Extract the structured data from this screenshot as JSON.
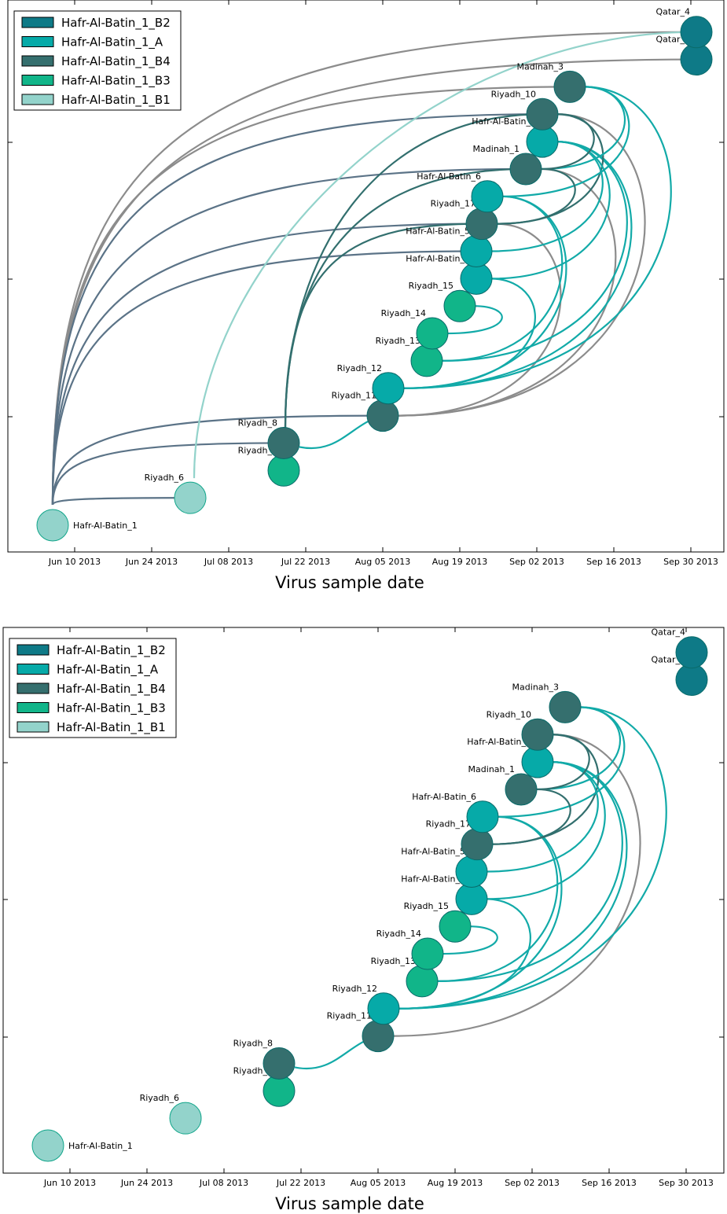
{
  "chart_data": [
    {
      "type": "scatter",
      "panel": "top",
      "xlabel": "Virus sample date",
      "ylabel": "",
      "x_ticks": [
        "Jun 10 2013",
        "Jun 24 2013",
        "Jul 08 2013",
        "Jul 22 2013",
        "Aug 05 2013",
        "Aug 19 2013",
        "Sep 02 2013",
        "Sep 16 2013",
        "Sep 30 2013"
      ],
      "legend": {
        "position": "top-left",
        "entries": [
          {
            "name": "Hafr-Al-Batin_1_B2",
            "color": "#0e7a87"
          },
          {
            "name": "Hafr-Al-Batin_1_A",
            "color": "#06aaa8"
          },
          {
            "name": "Hafr-Al-Batin_1_B4",
            "color": "#356f6e"
          },
          {
            "name": "Hafr-Al-Batin_1_B3",
            "color": "#11b589"
          },
          {
            "name": "Hafr-Al-Batin_1_B1",
            "color": "#93d3cb"
          }
        ]
      },
      "nodes": [
        {
          "label": "Hafr-Al-Batin_1",
          "clade": "Hafr-Al-Batin_1_B1",
          "x": "2013-06-06",
          "rank": 0
        },
        {
          "label": "Riyadh_6",
          "clade": "Hafr-Al-Batin_1_B1",
          "x": "2013-07-01",
          "rank": 1
        },
        {
          "label": "Riyadh_7",
          "clade": "Hafr-Al-Batin_1_B3",
          "x": "2013-07-18",
          "rank": 2
        },
        {
          "label": "Riyadh_8",
          "clade": "Hafr-Al-Batin_1_B4",
          "x": "2013-07-18",
          "rank": 3
        },
        {
          "label": "Riyadh_11",
          "clade": "Hafr-Al-Batin_1_B4",
          "x": "2013-08-05",
          "rank": 4
        },
        {
          "label": "Riyadh_12",
          "clade": "Hafr-Al-Batin_1_A",
          "x": "2013-08-06",
          "rank": 5
        },
        {
          "label": "Riyadh_13",
          "clade": "Hafr-Al-Batin_1_B3",
          "x": "2013-08-13",
          "rank": 6
        },
        {
          "label": "Riyadh_14",
          "clade": "Hafr-Al-Batin_1_B3",
          "x": "2013-08-14",
          "rank": 7
        },
        {
          "label": "Riyadh_15",
          "clade": "Hafr-Al-Batin_1_B3",
          "x": "2013-08-19",
          "rank": 8
        },
        {
          "label": "Hafr-Al-Batin_4",
          "clade": "Hafr-Al-Batin_1_A",
          "x": "2013-08-22",
          "rank": 9
        },
        {
          "label": "Hafr-Al-Batin_5",
          "clade": "Hafr-Al-Batin_1_A",
          "x": "2013-08-22",
          "rank": 10
        },
        {
          "label": "Riyadh_17",
          "clade": "Hafr-Al-Batin_1_B4",
          "x": "2013-08-23",
          "rank": 11
        },
        {
          "label": "Hafr-Al-Batin_6",
          "clade": "Hafr-Al-Batin_1_A",
          "x": "2013-08-24",
          "rank": 12
        },
        {
          "label": "Madinah_1",
          "clade": "Hafr-Al-Batin_1_B4",
          "x": "2013-08-31",
          "rank": 13
        },
        {
          "label": "Hafr-Al-Batin_2",
          "clade": "Hafr-Al-Batin_1_A",
          "x": "2013-09-03",
          "rank": 14
        },
        {
          "label": "Riyadh_10",
          "clade": "Hafr-Al-Batin_1_B4",
          "x": "2013-09-03",
          "rank": 15
        },
        {
          "label": "Madinah_3",
          "clade": "Hafr-Al-Batin_1_B4",
          "x": "2013-09-08",
          "rank": 16
        },
        {
          "label": "Qatar_3",
          "clade": "Hafr-Al-Batin_1_B2",
          "x": "2013-10-01",
          "rank": 17
        },
        {
          "label": "Qatar_4",
          "clade": "Hafr-Al-Batin_1_B2",
          "x": "2013-10-01",
          "rank": 18
        }
      ]
    },
    {
      "type": "scatter",
      "panel": "bottom",
      "xlabel": "Virus sample date",
      "ylabel": "",
      "x_ticks": [
        "Jun 10 2013",
        "Jun 24 2013",
        "Jul 08 2013",
        "Jul 22 2013",
        "Aug 05 2013",
        "Aug 19 2013",
        "Sep 02 2013",
        "Sep 16 2013",
        "Sep 30 2013"
      ],
      "legend": {
        "position": "top-left",
        "entries": [
          {
            "name": "Hafr-Al-Batin_1_B2",
            "color": "#0e7a87"
          },
          {
            "name": "Hafr-Al-Batin_1_A",
            "color": "#06aaa8"
          },
          {
            "name": "Hafr-Al-Batin_1_B4",
            "color": "#356f6e"
          },
          {
            "name": "Hafr-Al-Batin_1_B3",
            "color": "#11b589"
          },
          {
            "name": "Hafr-Al-Batin_1_B1",
            "color": "#93d3cb"
          }
        ]
      },
      "nodes": [
        {
          "label": "Hafr-Al-Batin_1",
          "clade": "Hafr-Al-Batin_1_B1",
          "x": "2013-06-06",
          "rank": 0
        },
        {
          "label": "Riyadh_6",
          "clade": "Hafr-Al-Batin_1_B1",
          "x": "2013-07-01",
          "rank": 1
        },
        {
          "label": "Riyadh_7",
          "clade": "Hafr-Al-Batin_1_B3",
          "x": "2013-07-18",
          "rank": 2
        },
        {
          "label": "Riyadh_8",
          "clade": "Hafr-Al-Batin_1_B4",
          "x": "2013-07-18",
          "rank": 3
        },
        {
          "label": "Riyadh_11",
          "clade": "Hafr-Al-Batin_1_B4",
          "x": "2013-08-05",
          "rank": 4
        },
        {
          "label": "Riyadh_12",
          "clade": "Hafr-Al-Batin_1_A",
          "x": "2013-08-06",
          "rank": 5
        },
        {
          "label": "Riyadh_13",
          "clade": "Hafr-Al-Batin_1_B3",
          "x": "2013-08-13",
          "rank": 6
        },
        {
          "label": "Riyadh_14",
          "clade": "Hafr-Al-Batin_1_B3",
          "x": "2013-08-14",
          "rank": 7
        },
        {
          "label": "Riyadh_15",
          "clade": "Hafr-Al-Batin_1_B3",
          "x": "2013-08-19",
          "rank": 8
        },
        {
          "label": "Hafr-Al-Batin_4",
          "clade": "Hafr-Al-Batin_1_A",
          "x": "2013-08-22",
          "rank": 9
        },
        {
          "label": "Hafr-Al-Batin_5",
          "clade": "Hafr-Al-Batin_1_A",
          "x": "2013-08-22",
          "rank": 10
        },
        {
          "label": "Riyadh_17",
          "clade": "Hafr-Al-Batin_1_B4",
          "x": "2013-08-23",
          "rank": 11
        },
        {
          "label": "Hafr-Al-Batin_6",
          "clade": "Hafr-Al-Batin_1_A",
          "x": "2013-08-24",
          "rank": 12
        },
        {
          "label": "Madinah_1",
          "clade": "Hafr-Al-Batin_1_B4",
          "x": "2013-08-31",
          "rank": 13
        },
        {
          "label": "Hafr-Al-Batin_2",
          "clade": "Hafr-Al-Batin_1_A",
          "x": "2013-09-03",
          "rank": 14
        },
        {
          "label": "Riyadh_10",
          "clade": "Hafr-Al-Batin_1_B4",
          "x": "2013-09-03",
          "rank": 15
        },
        {
          "label": "Madinah_3",
          "clade": "Hafr-Al-Batin_1_B4",
          "x": "2013-09-08",
          "rank": 16
        },
        {
          "label": "Qatar_3",
          "clade": "Hafr-Al-Batin_1_B2",
          "x": "2013-10-01",
          "rank": 17
        },
        {
          "label": "Qatar_4",
          "clade": "Hafr-Al-Batin_1_B2",
          "x": "2013-10-01",
          "rank": 18
        }
      ]
    }
  ]
}
